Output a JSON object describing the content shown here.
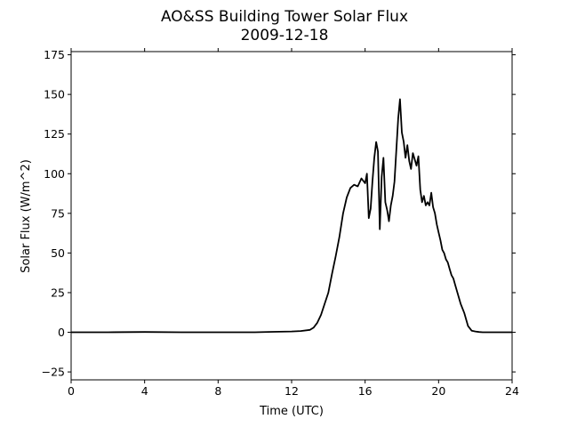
{
  "chart_data": {
    "type": "line",
    "title": "AO&SS Building Tower Solar Flux",
    "subtitle": "2009-12-18",
    "xlabel": "Time (UTC)",
    "ylabel": "Solar Flux (W/m^2)",
    "xlim": [
      0,
      24
    ],
    "ylim": [
      -30,
      177
    ],
    "xticks": [
      0,
      4,
      8,
      12,
      16,
      20,
      24
    ],
    "yticks": [
      -25,
      0,
      25,
      50,
      75,
      100,
      125,
      150,
      175
    ],
    "grid": false,
    "legend": "none",
    "line_color": "#000000",
    "series": [
      {
        "x": [
          0,
          2,
          4,
          6,
          8,
          10,
          11,
          12,
          12.5,
          13,
          13.2,
          13.4,
          13.6,
          13.8,
          14.0,
          14.2,
          14.4,
          14.6,
          14.8,
          15.0,
          15.2,
          15.4,
          15.6,
          15.8,
          16.0,
          16.1,
          16.2,
          16.3,
          16.4,
          16.5,
          16.6,
          16.7,
          16.8,
          16.9,
          17.0,
          17.1,
          17.2,
          17.3,
          17.4,
          17.5,
          17.6,
          17.7,
          17.8,
          17.9,
          18.0,
          18.1,
          18.2,
          18.3,
          18.4,
          18.5,
          18.6,
          18.7,
          18.8,
          18.9,
          19.0,
          19.1,
          19.2,
          19.3,
          19.4,
          19.5,
          19.6,
          19.7,
          19.8,
          19.9,
          20.0,
          20.1,
          20.2,
          20.3,
          20.4,
          20.5,
          20.6,
          20.7,
          20.8,
          20.9,
          21.0,
          21.2,
          21.4,
          21.6,
          21.8,
          22.0,
          22.2,
          22.4,
          22.6,
          22.8,
          23.0,
          24.0
        ],
        "values": [
          0,
          0,
          0.2,
          0,
          0,
          0,
          0.3,
          0.5,
          0.8,
          1.5,
          3,
          6,
          11,
          18,
          25,
          37,
          48,
          60,
          75,
          85,
          91,
          93,
          92,
          97,
          94,
          100,
          72,
          78,
          95,
          110,
          120,
          114,
          65,
          98,
          110,
          82,
          77,
          70,
          80,
          86,
          95,
          115,
          135,
          147,
          126,
          120,
          110,
          118,
          108,
          103,
          113,
          109,
          105,
          111,
          90,
          82,
          86,
          80,
          82,
          80,
          88,
          79,
          75,
          68,
          63,
          58,
          52,
          50,
          46,
          44,
          40,
          36,
          34,
          30,
          26,
          18,
          12,
          4,
          1,
          0.5,
          0.2,
          0,
          0,
          0,
          0,
          0
        ]
      }
    ]
  }
}
